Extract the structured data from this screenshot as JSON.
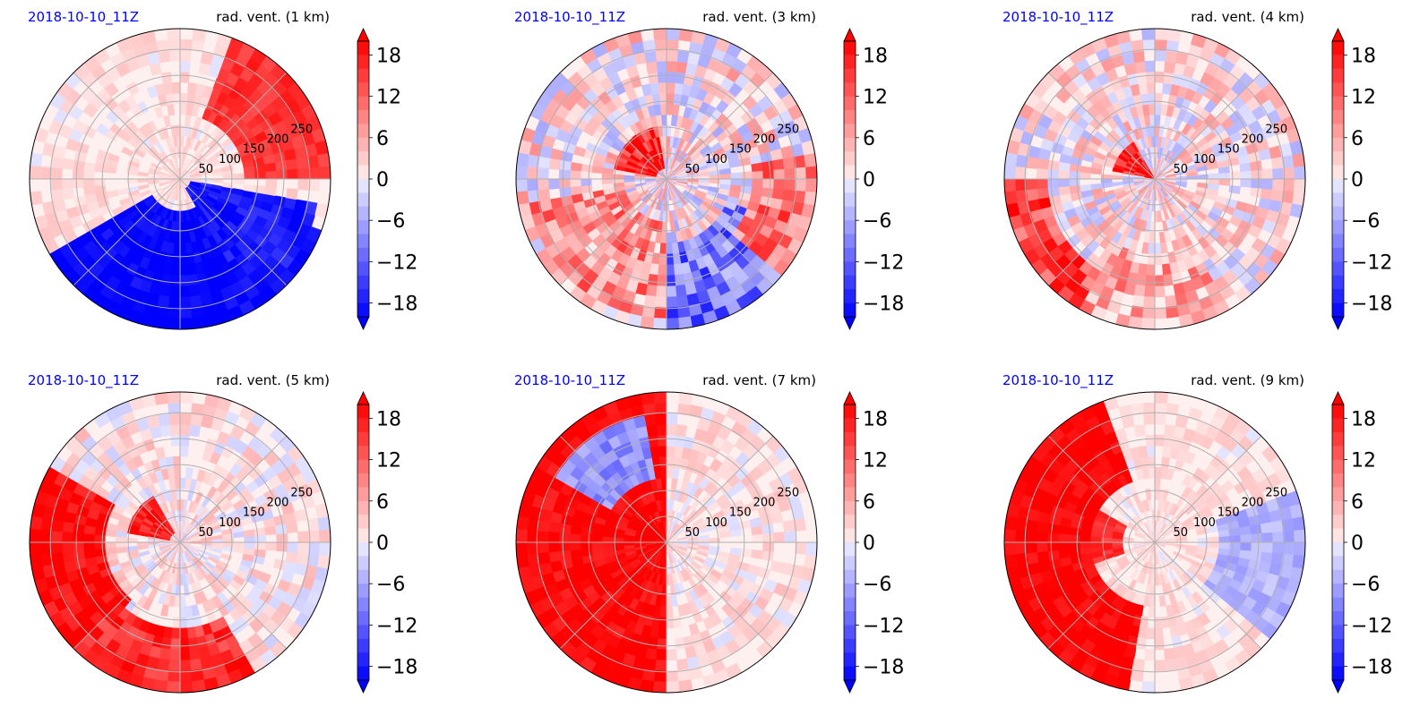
{
  "colors": {
    "time_label": "#0000ff",
    "positive": "#ff0000",
    "negative": "#0000ff",
    "zero_band": "#ffffff",
    "grid": "#b0b0b0",
    "outline": "#000000"
  },
  "colorbar": {
    "levels_min": -20,
    "levels_max": 20,
    "step": 2,
    "ticks": [
      "18",
      "12",
      "6",
      "0",
      "−6",
      "−12",
      "−18"
    ],
    "tick_values": [
      18,
      12,
      6,
      0,
      -6,
      -12,
      -18
    ],
    "extend": "both",
    "colormap": "bwr"
  },
  "chart_data": [
    {
      "type": "heatmap",
      "projection": "polar",
      "time_label": "2018-10-10_11Z",
      "title": "rad. vent. (1 km)",
      "radial_ticks": [
        "50",
        "100",
        "150",
        "200",
        "250"
      ],
      "radial_tick_values": [
        50,
        100,
        150,
        200,
        250
      ],
      "rmax": 290,
      "pattern": "strong negative (blue) band spiralling through the south and southwest, positive (red) rainband in the northeast"
    },
    {
      "type": "heatmap",
      "projection": "polar",
      "time_label": "2018-10-10_11Z",
      "title": "rad. vent. (3 km)",
      "radial_ticks": [
        "50",
        "100",
        "150",
        "200",
        "250"
      ],
      "radial_tick_values": [
        50,
        100,
        150,
        200,
        250
      ],
      "rmax": 290,
      "pattern": "mixed positive and negative streaks, red core northwest of center"
    },
    {
      "type": "heatmap",
      "projection": "polar",
      "time_label": "2018-10-10_11Z",
      "title": "rad. vent. (4 km)",
      "radial_ticks": [
        "50",
        "100",
        "150",
        "200",
        "250"
      ],
      "radial_tick_values": [
        50,
        100,
        150,
        200,
        250
      ],
      "rmax": 290,
      "pattern": "small mixed streaks, red core near center, positive along western and southwestern rim"
    },
    {
      "type": "heatmap",
      "projection": "polar",
      "time_label": "2018-10-10_11Z",
      "title": "rad. vent. (5 km)",
      "radial_ticks": [
        "50",
        "100",
        "150",
        "200",
        "250"
      ],
      "radial_tick_values": [
        50,
        100,
        150,
        200,
        250
      ],
      "rmax": 290,
      "pattern": "broad positive (red) outflow in the western and southwestern sector, red core near center"
    },
    {
      "type": "heatmap",
      "projection": "polar",
      "time_label": "2018-10-10_11Z",
      "title": "rad. vent. (7 km)",
      "radial_ticks": [
        "50",
        "100",
        "150",
        "200",
        "250"
      ],
      "radial_tick_values": [
        50,
        100,
        150,
        200,
        250
      ],
      "rmax": 290,
      "pattern": "strong positive (red) outflow covering the western half, weak values in the east"
    },
    {
      "type": "heatmap",
      "projection": "polar",
      "time_label": "2018-10-10_11Z",
      "title": "rad. vent. (9 km)",
      "radial_ticks": [
        "50",
        "100",
        "150",
        "200",
        "250"
      ],
      "radial_tick_values": [
        50,
        100,
        150,
        200,
        250
      ],
      "rmax": 290,
      "pattern": "positive (red) outflow in the western sector, weak blue patches in the east"
    }
  ]
}
